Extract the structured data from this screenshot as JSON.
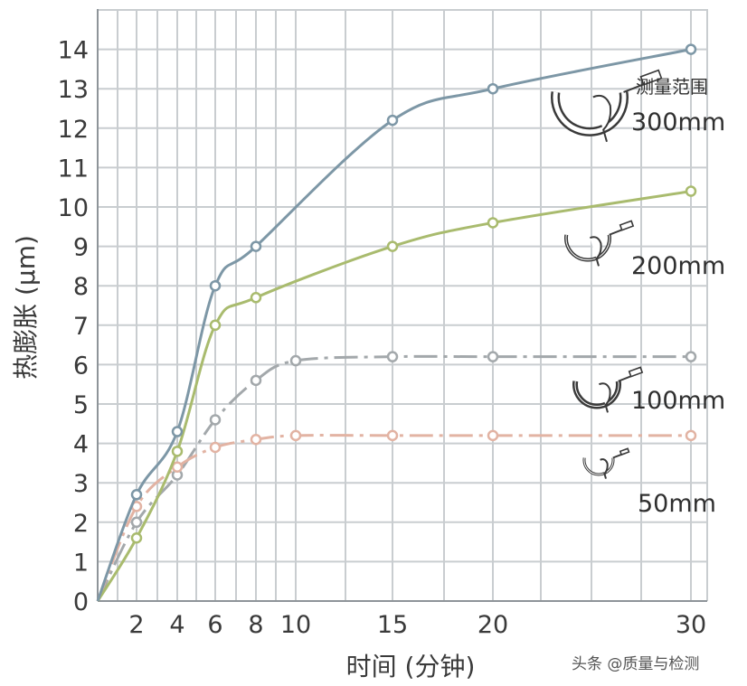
{
  "chart_data": {
    "type": "line",
    "ylabel": "热膨胀 (µm)",
    "xlabel": "时间 (分钟)",
    "x_ticks": [
      "2",
      "4",
      "6",
      "8",
      "10",
      "15",
      "20",
      "30"
    ],
    "y_ticks": [
      "0",
      "1",
      "2",
      "3",
      "4",
      "5",
      "6",
      "7",
      "8",
      "9",
      "10",
      "11",
      "12",
      "13",
      "14"
    ],
    "ylim": [
      0,
      14.5
    ],
    "grid": true,
    "legend_header": "测量范围",
    "series": [
      {
        "name": "300mm",
        "color": "#7d97a6",
        "dash": "solid",
        "points": [
          [
            0,
            0
          ],
          [
            2,
            2.7
          ],
          [
            4,
            4.3
          ],
          [
            6,
            8.0
          ],
          [
            8,
            9.0
          ],
          [
            15,
            12.2
          ],
          [
            20,
            13.0
          ],
          [
            30,
            14.0
          ]
        ]
      },
      {
        "name": "200mm",
        "color": "#a9bb6e",
        "dash": "solid",
        "points": [
          [
            0,
            0
          ],
          [
            2,
            1.6
          ],
          [
            4,
            3.8
          ],
          [
            6,
            7.0
          ],
          [
            8,
            7.7
          ],
          [
            15,
            9.0
          ],
          [
            20,
            9.6
          ],
          [
            30,
            10.4
          ]
        ]
      },
      {
        "name": "100mm",
        "color": "#a3a8ab",
        "dash": "dashdot",
        "points": [
          [
            0,
            0
          ],
          [
            2,
            2.0
          ],
          [
            4,
            3.2
          ],
          [
            6,
            4.6
          ],
          [
            8,
            5.6
          ],
          [
            10,
            6.1
          ],
          [
            15,
            6.2
          ],
          [
            20,
            6.2
          ],
          [
            30,
            6.2
          ]
        ]
      },
      {
        "name": "50mm",
        "color": "#e2b3a3",
        "dash": "dashdot",
        "points": [
          [
            0,
            0
          ],
          [
            2,
            2.4
          ],
          [
            4,
            3.4
          ],
          [
            6,
            3.9
          ],
          [
            8,
            4.1
          ],
          [
            10,
            4.2
          ],
          [
            15,
            4.2
          ],
          [
            20,
            4.2
          ],
          [
            30,
            4.2
          ]
        ]
      }
    ]
  },
  "watermark": "头条 @质量与检测",
  "icons": [
    "micrometer-hand-icon"
  ]
}
